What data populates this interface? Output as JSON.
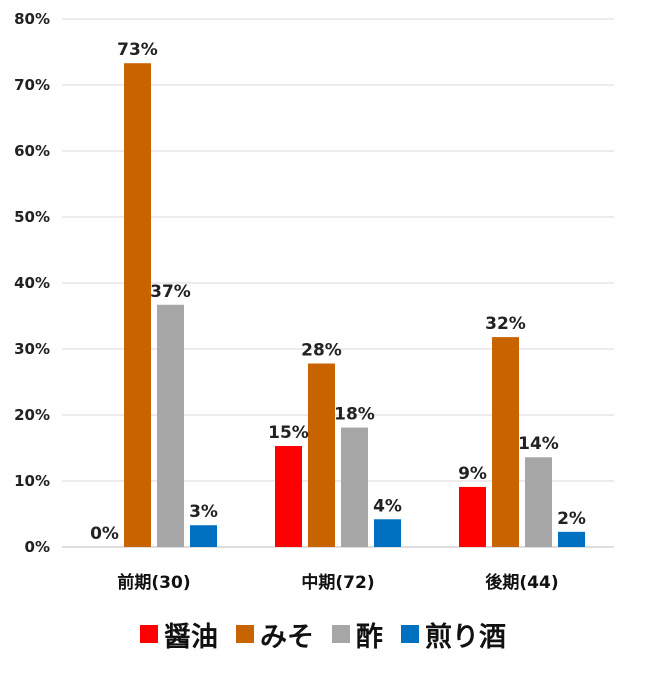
{
  "chart_data": {
    "type": "bar",
    "categories": [
      "前期(30)",
      "中期(72)",
      "後期(44)"
    ],
    "series": [
      {
        "name": "醤油",
        "color": "#ff0000",
        "values": [
          0,
          15,
          9
        ],
        "labels": [
          "0%",
          "15%",
          "9%"
        ]
      },
      {
        "name": "みそ",
        "color": "#c86400",
        "values": [
          73,
          28,
          32
        ],
        "labels": [
          "73%",
          "28%",
          "32%"
        ]
      },
      {
        "name": "酢",
        "color": "#a6a6a6",
        "values": [
          37,
          18,
          14
        ],
        "labels": [
          "37%",
          "18%",
          "14%"
        ]
      },
      {
        "name": "煎り酒",
        "color": "#0070c0",
        "values": [
          3,
          4,
          2
        ],
        "labels": [
          "3%",
          "4%",
          "2%"
        ]
      }
    ],
    "exact_values": [
      [
        0,
        15.3,
        9.1
      ],
      [
        73.3,
        27.8,
        31.8
      ],
      [
        36.7,
        18.1,
        13.6
      ],
      [
        3.3,
        4.2,
        2.3
      ]
    ],
    "ylim": [
      0,
      80
    ],
    "yticks": [
      0,
      10,
      20,
      30,
      40,
      50,
      60,
      70,
      80
    ],
    "ytick_labels": [
      "0%",
      "10%",
      "20%",
      "30%",
      "40%",
      "50%",
      "60%",
      "70%",
      "80%"
    ],
    "grid": true,
    "legend_position": "bottom"
  }
}
